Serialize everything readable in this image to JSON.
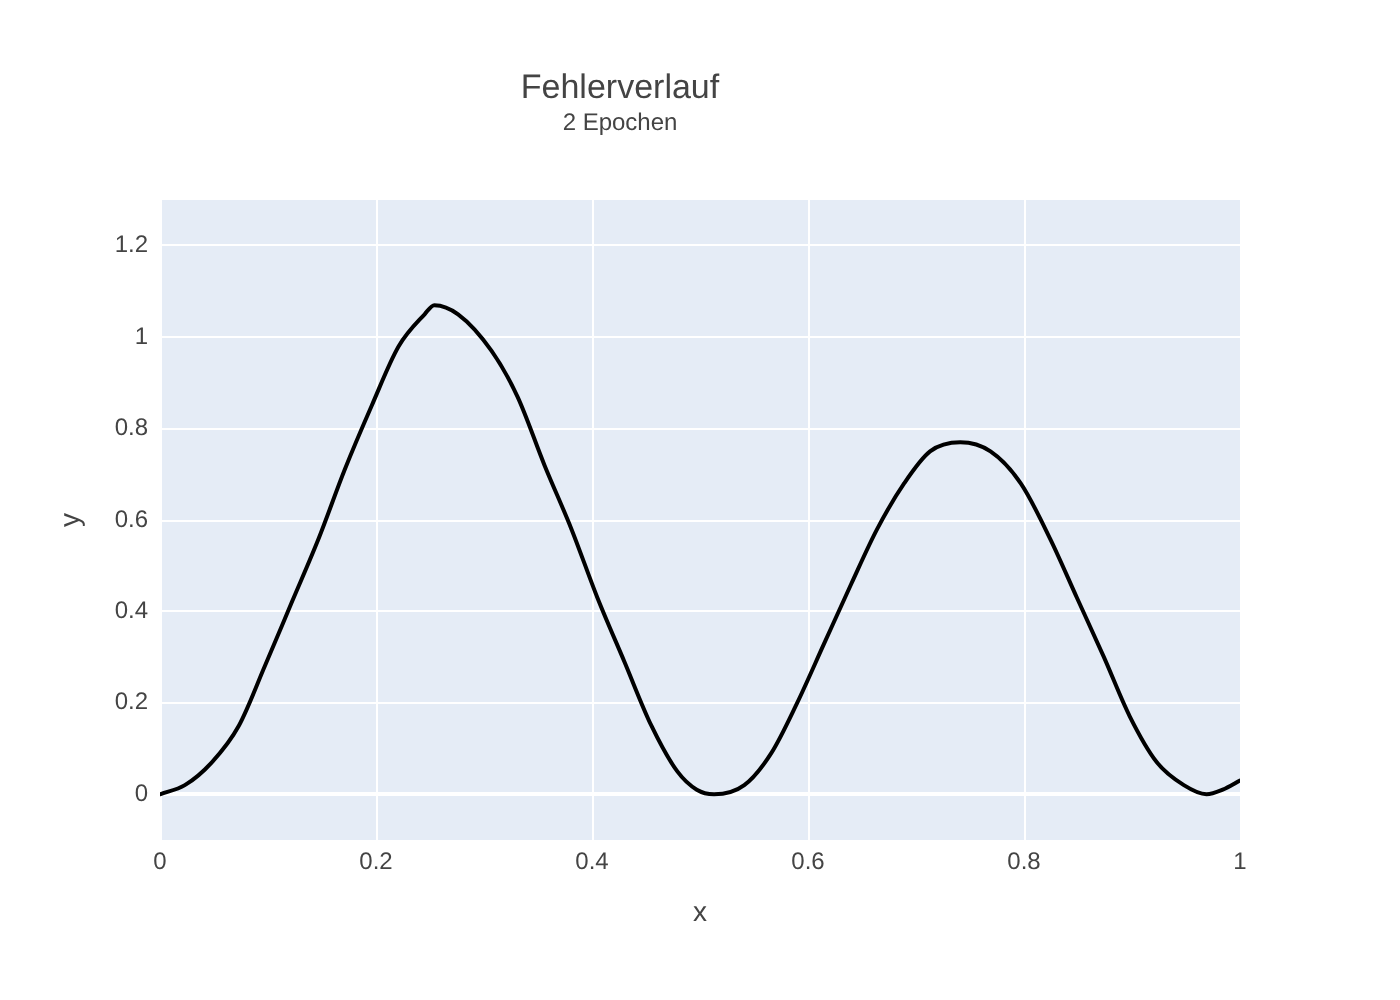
{
  "chart_data": {
    "type": "line",
    "title": "Fehlerverlauf",
    "subtitle": "2 Epochen",
    "xlabel": "x",
    "ylabel": "y",
    "x": [
      0,
      0.023,
      0.048,
      0.073,
      0.097,
      0.122,
      0.147,
      0.171,
      0.196,
      0.221,
      0.245,
      0.254,
      0.276,
      0.307,
      0.331,
      0.356,
      0.381,
      0.405,
      0.43,
      0.455,
      0.479,
      0.497,
      0.513,
      0.541,
      0.566,
      0.59,
      0.615,
      0.64,
      0.664,
      0.689,
      0.713,
      0.741,
      0.769,
      0.797,
      0.824,
      0.849,
      0.874,
      0.898,
      0.923,
      0.948,
      0.969,
      0.984,
      1
    ],
    "values": [
      0,
      0.02,
      0.07,
      0.15,
      0.28,
      0.42,
      0.56,
      0.71,
      0.85,
      0.98,
      1.05,
      1.07,
      1.05,
      0.97,
      0.87,
      0.72,
      0.58,
      0.43,
      0.29,
      0.15,
      0.05,
      0.01,
      0,
      0.02,
      0.09,
      0.2,
      0.33,
      0.46,
      0.58,
      0.68,
      0.75,
      0.77,
      0.75,
      0.68,
      0.56,
      0.43,
      0.3,
      0.17,
      0.07,
      0.02,
      0,
      0.01,
      0.03
    ],
    "color": "#000000",
    "xlim": [
      0,
      1
    ],
    "xticks": [
      0,
      0.2,
      0.4,
      0.6,
      0.8,
      1
    ],
    "ylim": [
      -0.1,
      1.3
    ],
    "yticks": [
      0,
      0.2,
      0.4,
      0.6,
      0.8,
      1,
      1.2
    ],
    "grid": true,
    "legend": false
  }
}
